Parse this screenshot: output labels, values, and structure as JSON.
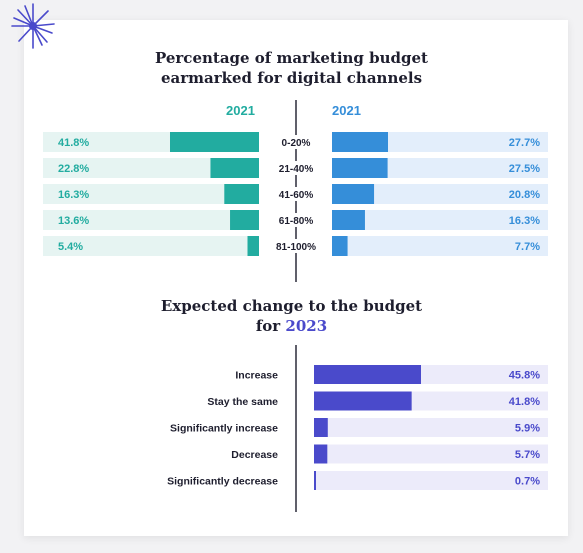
{
  "colors": {
    "teal": "#22aca0",
    "teal_track": "#e6f4f2",
    "blue": "#358ed9",
    "blue_track": "#e3eefb",
    "purple": "#4a4acb",
    "purple_track": "#ecebfa",
    "label_teal": "#22aca0",
    "label_blue": "#358ed9",
    "label_purple": "#4a4acb"
  },
  "top_chart": {
    "title_line1": "Percentage of marketing budget",
    "title_line2": "earmarked for digital channels",
    "left_year": "2021",
    "right_year": "2021"
  },
  "bottom_chart": {
    "title_line1": "Expected change to the budget",
    "title_line2_prefix": "for ",
    "title_line2_highlight": "2023"
  },
  "chart_data": [
    {
      "type": "bar",
      "orientation": "horizontal-diverging",
      "categories": [
        "0-20%",
        "21-40%",
        "41-60%",
        "61-80%",
        "81-100%"
      ],
      "series": [
        {
          "name": "2021",
          "values": [
            41.8,
            22.8,
            16.3,
            13.6,
            5.4
          ],
          "labels": [
            "41.8%",
            "22.8%",
            "16.3%",
            "13.6%",
            "5.4%"
          ]
        },
        {
          "name": "2021",
          "values": [
            27.7,
            27.5,
            20.8,
            16.3,
            7.7
          ],
          "labels": [
            "27.7%",
            "27.5%",
            "20.8%",
            "16.3%",
            "7.7%"
          ]
        }
      ],
      "title": "Percentage of marketing budget earmarked for digital channels"
    },
    {
      "type": "bar",
      "orientation": "horizontal",
      "categories": [
        "Increase",
        "Stay the same",
        "Significantly increase",
        "Decrease",
        "Significantly decrease"
      ],
      "values": [
        45.8,
        41.8,
        5.9,
        5.7,
        0.7
      ],
      "labels": [
        "45.8%",
        "41.8%",
        "5.9%",
        "5.7%",
        "0.7%"
      ],
      "title": "Expected change to the budget for 2023"
    }
  ]
}
